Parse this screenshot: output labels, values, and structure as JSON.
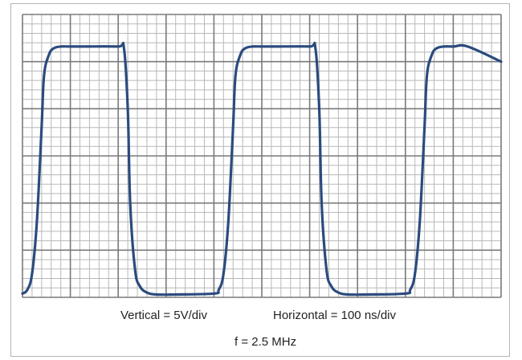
{
  "captions": {
    "vertical": "Vertical = 5V/div",
    "horizontal": "Horizontal = 100 ns/div",
    "frequency": "f = 2.5 MHz"
  },
  "colors": {
    "trace": "#2b4b7e",
    "major_grid": "#7a7a7a",
    "minor_grid": "#b8b8b8",
    "frame": "#b4b4b4"
  },
  "chart_data": {
    "type": "line",
    "title": "",
    "xlabel": "",
    "ylabel": "",
    "x_units": "ns",
    "y_units": "V",
    "volts_per_div": 5,
    "ns_per_div": 100,
    "horizontal_divisions": 10,
    "vertical_divisions": 6,
    "xlim": [
      0,
      1000
    ],
    "ylim": [
      0,
      30
    ],
    "grid": true,
    "legend": "none",
    "frequency_MHz": 2.5,
    "period_ns": 400,
    "series": [
      {
        "x": [
          0,
          10,
          20,
          30,
          40,
          45,
          55,
          65,
          80,
          100,
          130,
          200,
          212,
          220,
          225,
          235,
          245,
          260,
          280,
          320,
          400,
          410,
          420,
          430,
          440,
          445,
          455,
          465,
          480,
          500,
          530,
          600,
          612,
          620,
          625,
          635,
          645,
          660,
          680,
          720,
          800,
          810,
          820,
          830,
          840,
          845,
          855,
          865,
          880,
          900,
          930,
          1000
        ],
        "y": [
          0.4,
          0.8,
          2.5,
          8,
          18,
          23.5,
          25.7,
          26.4,
          26.6,
          26.6,
          26.6,
          26.6,
          26.4,
          20,
          10,
          3,
          1.2,
          0.5,
          0.3,
          0.3,
          0.4,
          0.8,
          2.5,
          8,
          18,
          23.5,
          25.7,
          26.4,
          26.6,
          26.6,
          26.6,
          26.6,
          26.4,
          20,
          10,
          3,
          1.2,
          0.5,
          0.3,
          0.3,
          0.4,
          0.8,
          2.5,
          8,
          18,
          23.5,
          25.7,
          26.4,
          26.6,
          26.6,
          26.6,
          25
        ]
      }
    ]
  }
}
